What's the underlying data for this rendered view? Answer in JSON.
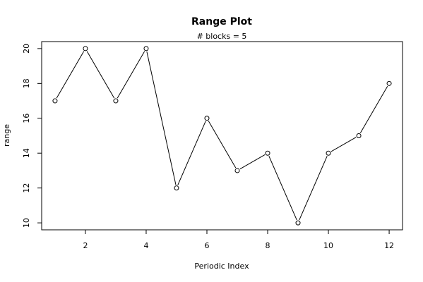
{
  "chart_data": {
    "type": "line",
    "title": "Range Plot",
    "subtitle": "# blocks =  5",
    "xlabel": "Periodic Index",
    "ylabel": "range",
    "x": [
      1,
      2,
      3,
      4,
      5,
      6,
      7,
      8,
      9,
      10,
      11,
      12
    ],
    "y": [
      17,
      20,
      17,
      20,
      12,
      16,
      13,
      14,
      10,
      14,
      15,
      18
    ],
    "xlim": [
      0.56,
      12.44
    ],
    "ylim": [
      9.6,
      20.4
    ],
    "x_ticks": [
      2,
      4,
      6,
      8,
      10,
      12
    ],
    "y_ticks": [
      10,
      12,
      14,
      16,
      18,
      20
    ],
    "markers": "open-circle",
    "grid": false,
    "colors": {
      "line": "#000000",
      "marker": "#000000",
      "axis": "#000000"
    }
  }
}
